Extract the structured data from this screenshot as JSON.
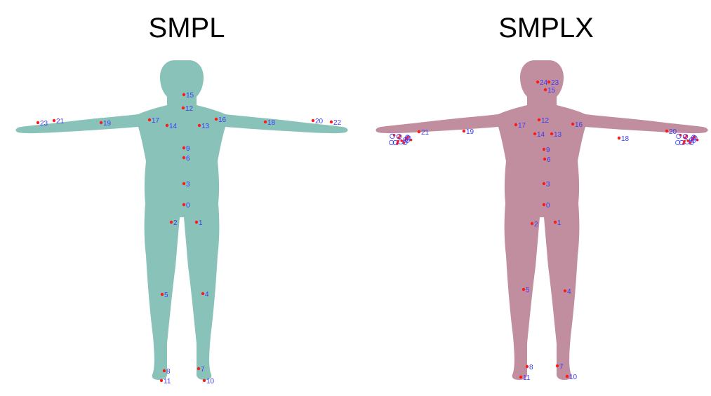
{
  "panels": [
    {
      "title": "SMPL",
      "body_color": "#88c2b8",
      "joints": [
        {
          "label": "0"
        },
        {
          "label": "1"
        },
        {
          "label": "2"
        },
        {
          "label": "3"
        },
        {
          "label": "4"
        },
        {
          "label": "5"
        },
        {
          "label": "6"
        },
        {
          "label": "7"
        },
        {
          "label": "8"
        },
        {
          "label": "9"
        },
        {
          "label": "10"
        },
        {
          "label": "11"
        },
        {
          "label": "12"
        },
        {
          "label": "13"
        },
        {
          "label": "14"
        },
        {
          "label": "15"
        },
        {
          "label": "16"
        },
        {
          "label": "17"
        },
        {
          "label": "18"
        },
        {
          "label": "19"
        },
        {
          "label": "20"
        },
        {
          "label": "21"
        },
        {
          "label": "22"
        },
        {
          "label": "23"
        }
      ]
    },
    {
      "title": "SMPLX",
      "body_color": "#c08e9e",
      "joints": [
        {
          "label": "0"
        },
        {
          "label": "1"
        },
        {
          "label": "2"
        },
        {
          "label": "3"
        },
        {
          "label": "4"
        },
        {
          "label": "5"
        },
        {
          "label": "6"
        },
        {
          "label": "7"
        },
        {
          "label": "8"
        },
        {
          "label": "9"
        },
        {
          "label": "10"
        },
        {
          "label": "11"
        },
        {
          "label": "12"
        },
        {
          "label": "13"
        },
        {
          "label": "14"
        },
        {
          "label": "15"
        },
        {
          "label": "16"
        },
        {
          "label": "17"
        },
        {
          "label": "18"
        },
        {
          "label": "19"
        },
        {
          "label": "20"
        },
        {
          "label": "21"
        },
        {
          "label": "23"
        },
        {
          "label": "24"
        }
      ]
    }
  ]
}
